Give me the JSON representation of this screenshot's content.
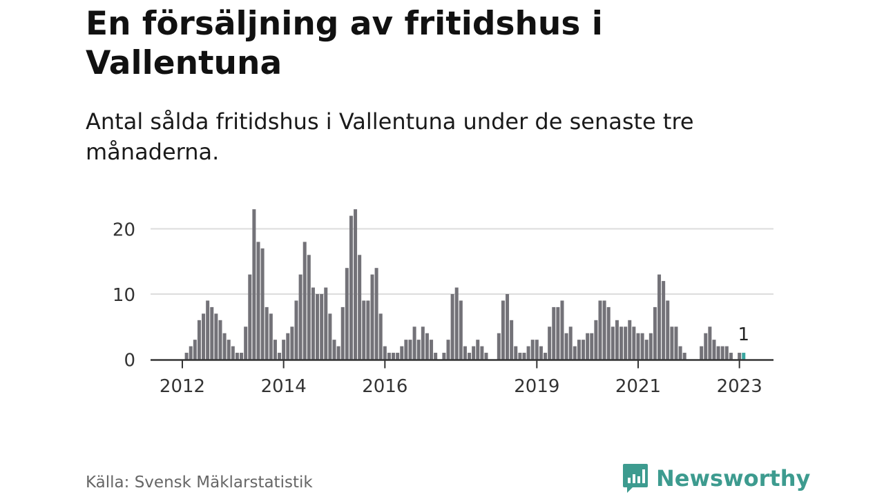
{
  "title": "En försäljning av fritidshus i Vallentuna",
  "subtitle": "Antal sålda fritidshus i Vallentuna under de senaste tre månaderna.",
  "source": "Källa: Svensk Mäklarstatistik",
  "brand": {
    "name": "Newsworthy",
    "icon": "newsworthy-logo-icon",
    "color": "#3d9b8f"
  },
  "chart_data": {
    "type": "bar",
    "x_start": "2012-01",
    "x_tick_labels": [
      "2012",
      "2014",
      "2016",
      "2019",
      "2021",
      "2023"
    ],
    "x_tick_positions": [
      "2012-01",
      "2014-01",
      "2016-01",
      "2019-01",
      "2021-01",
      "2023-01"
    ],
    "y_ticks": [
      0,
      10,
      20
    ],
    "ylim": [
      0,
      24
    ],
    "grid": true,
    "bar_color": "#737278",
    "highlight_color": "#3aa6a0",
    "highlight_index": 133,
    "annotation": "1",
    "values": [
      0,
      1,
      2,
      3,
      6,
      7,
      9,
      8,
      7,
      6,
      4,
      3,
      2,
      1,
      1,
      5,
      13,
      23,
      18,
      17,
      8,
      7,
      3,
      1,
      3,
      4,
      5,
      9,
      13,
      18,
      16,
      11,
      10,
      10,
      11,
      7,
      3,
      2,
      8,
      14,
      22,
      23,
      16,
      9,
      9,
      13,
      14,
      7,
      2,
      1,
      1,
      1,
      2,
      3,
      3,
      5,
      3,
      5,
      4,
      3,
      1,
      0,
      1,
      3,
      10,
      11,
      9,
      2,
      1,
      2,
      3,
      2,
      1,
      0,
      0,
      4,
      9,
      10,
      6,
      2,
      1,
      1,
      2,
      3,
      3,
      2,
      1,
      5,
      8,
      8,
      9,
      4,
      5,
      2,
      3,
      3,
      4,
      4,
      6,
      9,
      9,
      8,
      5,
      6,
      5,
      5,
      6,
      5,
      4,
      4,
      3,
      4,
      8,
      13,
      12,
      9,
      5,
      5,
      2,
      1,
      0,
      0,
      0,
      2,
      4,
      5,
      3,
      2,
      2,
      2,
      1,
      0,
      1,
      1
    ]
  }
}
